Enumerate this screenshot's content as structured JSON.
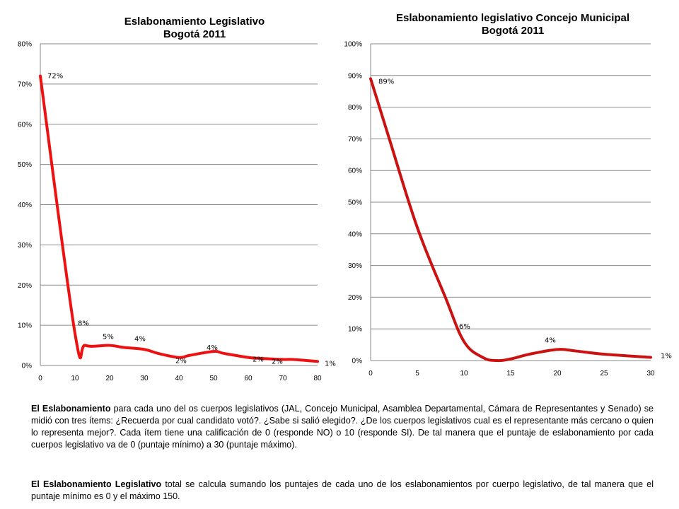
{
  "chart_data": [
    {
      "type": "line",
      "title": "Eslabonamiento Legislativo",
      "subtitle": "Bogotá 2011",
      "xlim": [
        0,
        80
      ],
      "ylim": [
        0,
        80
      ],
      "x_ticks": [
        "0",
        "10",
        "20",
        "30",
        "40",
        "50",
        "60",
        "70",
        "80"
      ],
      "y_ticks": [
        "0%",
        "10%",
        "20%",
        "30%",
        "40%",
        "50%",
        "60%",
        "70%",
        "80%"
      ],
      "grid": true,
      "color": "#ee1111",
      "series": [
        {
          "x": [
            0,
            10,
            13,
            20,
            24,
            30,
            34,
            40,
            43,
            50,
            53,
            60,
            63,
            70,
            73,
            80
          ],
          "values": [
            72,
            8,
            5,
            5,
            4.5,
            4,
            3,
            2,
            2.5,
            3.5,
            3,
            2,
            1.8,
            1.5,
            1.5,
            1
          ]
        }
      ],
      "data_labels": [
        {
          "x": 0,
          "y": 72,
          "text": "72%"
        },
        {
          "x": 10,
          "y": 8,
          "text": "8%"
        },
        {
          "x": 20,
          "y": 5,
          "text": "5%"
        },
        {
          "x": 30,
          "y": 4,
          "text": "4%"
        },
        {
          "x": 40,
          "y": 2,
          "text": "2%"
        },
        {
          "x": 50,
          "y": 3.5,
          "text": "4%"
        },
        {
          "x": 60,
          "y": 2,
          "text": "2%"
        },
        {
          "x": 70,
          "y": 1.5,
          "text": "2%"
        },
        {
          "x": 80,
          "y": 1,
          "text": "1%"
        }
      ]
    },
    {
      "type": "line",
      "title": "Eslabonamiento legislativo Concejo Municipal",
      "subtitle": "Bogotá 2011",
      "xlim": [
        0,
        30
      ],
      "ylim": [
        0,
        100
      ],
      "x_ticks": [
        "0",
        "5",
        "10",
        "15",
        "20",
        "25",
        "30"
      ],
      "y_ticks": [
        "0%",
        "10%",
        "20%",
        "30%",
        "40%",
        "50%",
        "60%",
        "70%",
        "80%",
        "90%",
        "100%"
      ],
      "grid": true,
      "color": "#cc1111",
      "series": [
        {
          "x": [
            0,
            2,
            5,
            8,
            10,
            12,
            13.5,
            15,
            17,
            20,
            22,
            25,
            30
          ],
          "values": [
            89,
            70,
            42,
            20,
            6,
            1,
            0,
            0.5,
            2,
            3.5,
            3,
            2,
            1
          ]
        }
      ],
      "data_labels": [
        {
          "x": 0,
          "y": 89,
          "text": "89%"
        },
        {
          "x": 10,
          "y": 6,
          "text": "6%"
        },
        {
          "x": 20,
          "y": 3.5,
          "text": "4%"
        },
        {
          "x": 30,
          "y": 1,
          "text": "1%"
        }
      ]
    }
  ],
  "text": {
    "p1_bold": "El Eslabonamiento",
    "p1_rest": " para cada uno del os cuerpos legislativos  (JAL, Concejo Municipal, Asamblea Departamental, Cámara de Representantes y Senado) se midió con tres ítems: ¿Recuerda por cual candidato votó?. ¿Sabe si  salió elegido?. ¿De los cuerpos legislativos cual es el  representante más cercano o quien lo representa mejor?.  Cada ítem tiene una calificación de 0 (responde NO) o 10  (responde SI). De tal manera que el puntaje de eslabonamiento por cada cuerpos legislativo  va de 0 (puntaje mínimo) a 30 (puntaje máximo).",
    "p2_bold": "El Eslabonamiento Legislativo",
    "p2_rest": " total se calcula sumando  los puntajes de cada uno de los eslabonamientos por cuerpo legislativo, de tal manera que el puntaje mínimo es 0  y el máximo 150."
  }
}
